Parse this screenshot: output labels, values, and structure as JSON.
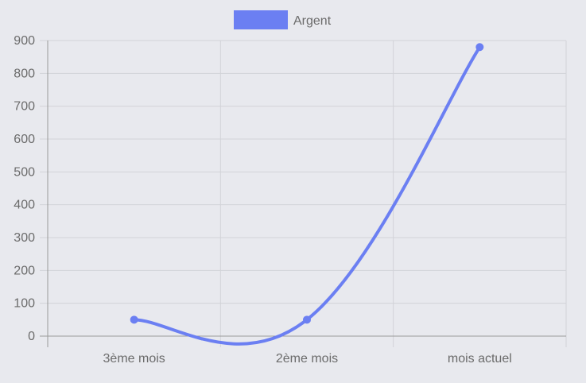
{
  "chart_data": {
    "type": "line",
    "categories": [
      "3ème mois",
      "2ème mois",
      "mois actuel"
    ],
    "series": [
      {
        "name": "Argent",
        "values": [
          50,
          50,
          880
        ],
        "color": "#6b7ff2"
      }
    ],
    "ylim": [
      0,
      900
    ],
    "yticks": [
      "0",
      "100",
      "200",
      "300",
      "400",
      "500",
      "600",
      "700",
      "800",
      "900"
    ],
    "grid": true,
    "legend": "top-center"
  }
}
